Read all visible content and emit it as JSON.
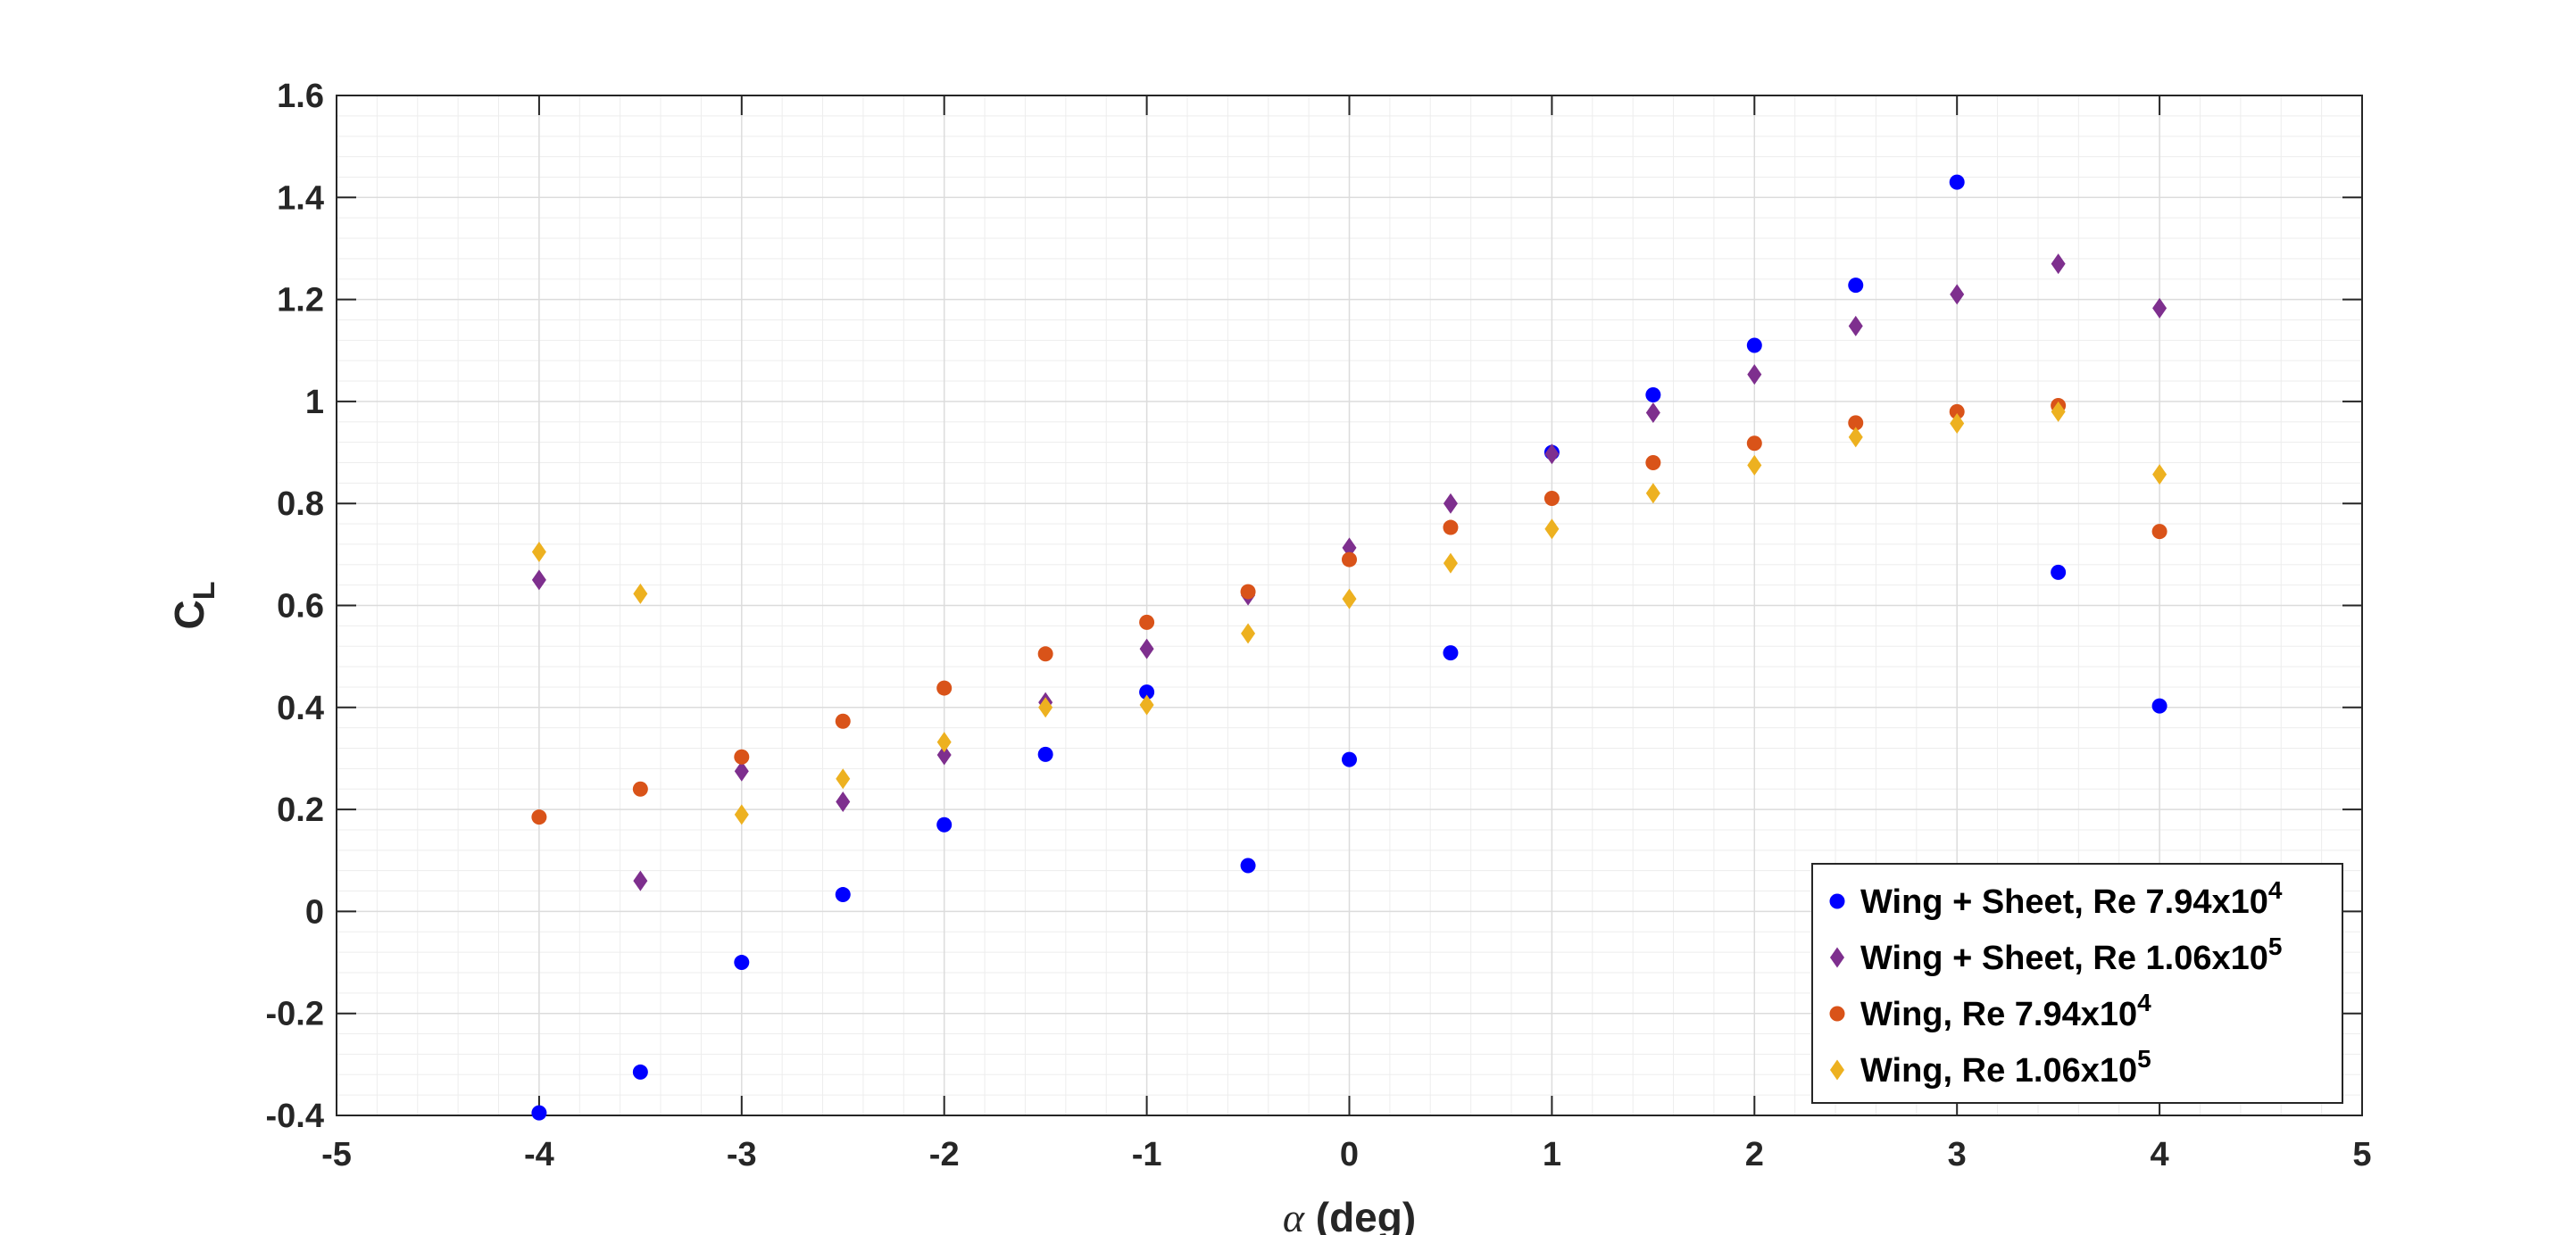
{
  "chart_data": {
    "type": "scatter",
    "title": "",
    "xlabel": {
      "symbol": "α",
      "text": " (deg)"
    },
    "ylabel": {
      "main": "C",
      "sub": "L"
    },
    "xlim": [
      -5,
      5
    ],
    "ylim": [
      -0.4,
      1.6
    ],
    "x_ticks": [
      -5,
      -4,
      -3,
      -2,
      -1,
      0,
      1,
      2,
      3,
      4,
      5
    ],
    "x_tick_labels": [
      "-5",
      "-4",
      "-3",
      "-2",
      "-1",
      "0",
      "1",
      "2",
      "3",
      "4",
      "5"
    ],
    "y_ticks": [
      -0.4,
      -0.2,
      0,
      0.2,
      0.4,
      0.6,
      0.8,
      1,
      1.2,
      1.4,
      1.6
    ],
    "y_tick_labels": [
      "-0.4",
      "-0.2",
      "0",
      "0.2",
      "0.4",
      "0.6",
      "0.8",
      "1",
      "1.2",
      "1.4",
      "1.6"
    ],
    "grid": true,
    "minor_grid": true,
    "legend_position": "bottom-right",
    "x": [
      -4,
      -3.5,
      -3,
      -2.5,
      -2,
      -1.5,
      -1,
      -0.5,
      0,
      0.5,
      1,
      1.5,
      2,
      2.5,
      3,
      3.5,
      4
    ],
    "series": [
      {
        "label_main": "Wing + Sheet, Re 7.94x10",
        "label_sup": "4",
        "marker": "circle",
        "color": "#0000ff",
        "values": [
          -0.395,
          -0.315,
          -0.1,
          0.033,
          0.17,
          0.308,
          0.43,
          0.09,
          0.298,
          0.507,
          0.9,
          1.013,
          1.11,
          1.228,
          1.43,
          0.665,
          0.403
        ]
      },
      {
        "label_main": "Wing + Sheet, Re 1.06x10",
        "label_sup": "5",
        "marker": "diamond",
        "color": "#7e2f8e",
        "values": [
          0.65,
          0.06,
          0.275,
          0.215,
          0.307,
          0.41,
          0.515,
          0.62,
          0.713,
          0.8,
          0.897,
          0.978,
          1.053,
          1.148,
          1.21,
          1.27,
          1.183
        ]
      },
      {
        "label_main": "Wing, Re 7.94x10",
        "label_sup": "4",
        "marker": "circle",
        "color": "#d95319",
        "values": [
          0.185,
          0.24,
          0.303,
          0.373,
          0.438,
          0.505,
          0.567,
          0.627,
          0.69,
          0.753,
          0.81,
          0.88,
          0.918,
          0.958,
          0.98,
          0.992,
          0.745
        ]
      },
      {
        "label_main": "Wing, Re 1.06x10",
        "label_sup": "5",
        "marker": "diamond",
        "color": "#edb120",
        "values": [
          0.705,
          0.623,
          0.19,
          0.26,
          0.332,
          0.4,
          0.405,
          0.545,
          0.613,
          0.683,
          0.75,
          0.82,
          0.875,
          0.93,
          0.957,
          0.98,
          0.857
        ]
      }
    ]
  }
}
